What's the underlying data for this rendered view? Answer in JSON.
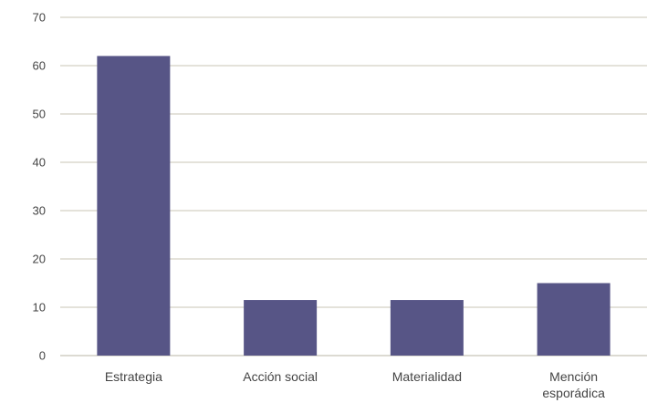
{
  "chart_data": {
    "type": "bar",
    "title": "",
    "xlabel": "",
    "ylabel": "",
    "categories": [
      "Estrategia",
      "Acción social",
      "Materialidad",
      "Mención esporádica"
    ],
    "values": [
      62,
      11.5,
      11.5,
      15
    ],
    "ylim": [
      0,
      70
    ],
    "yticks": [
      0,
      10,
      20,
      30,
      40,
      50,
      60,
      70
    ],
    "grid": true,
    "legend": "none",
    "bar_color": "#575586"
  }
}
